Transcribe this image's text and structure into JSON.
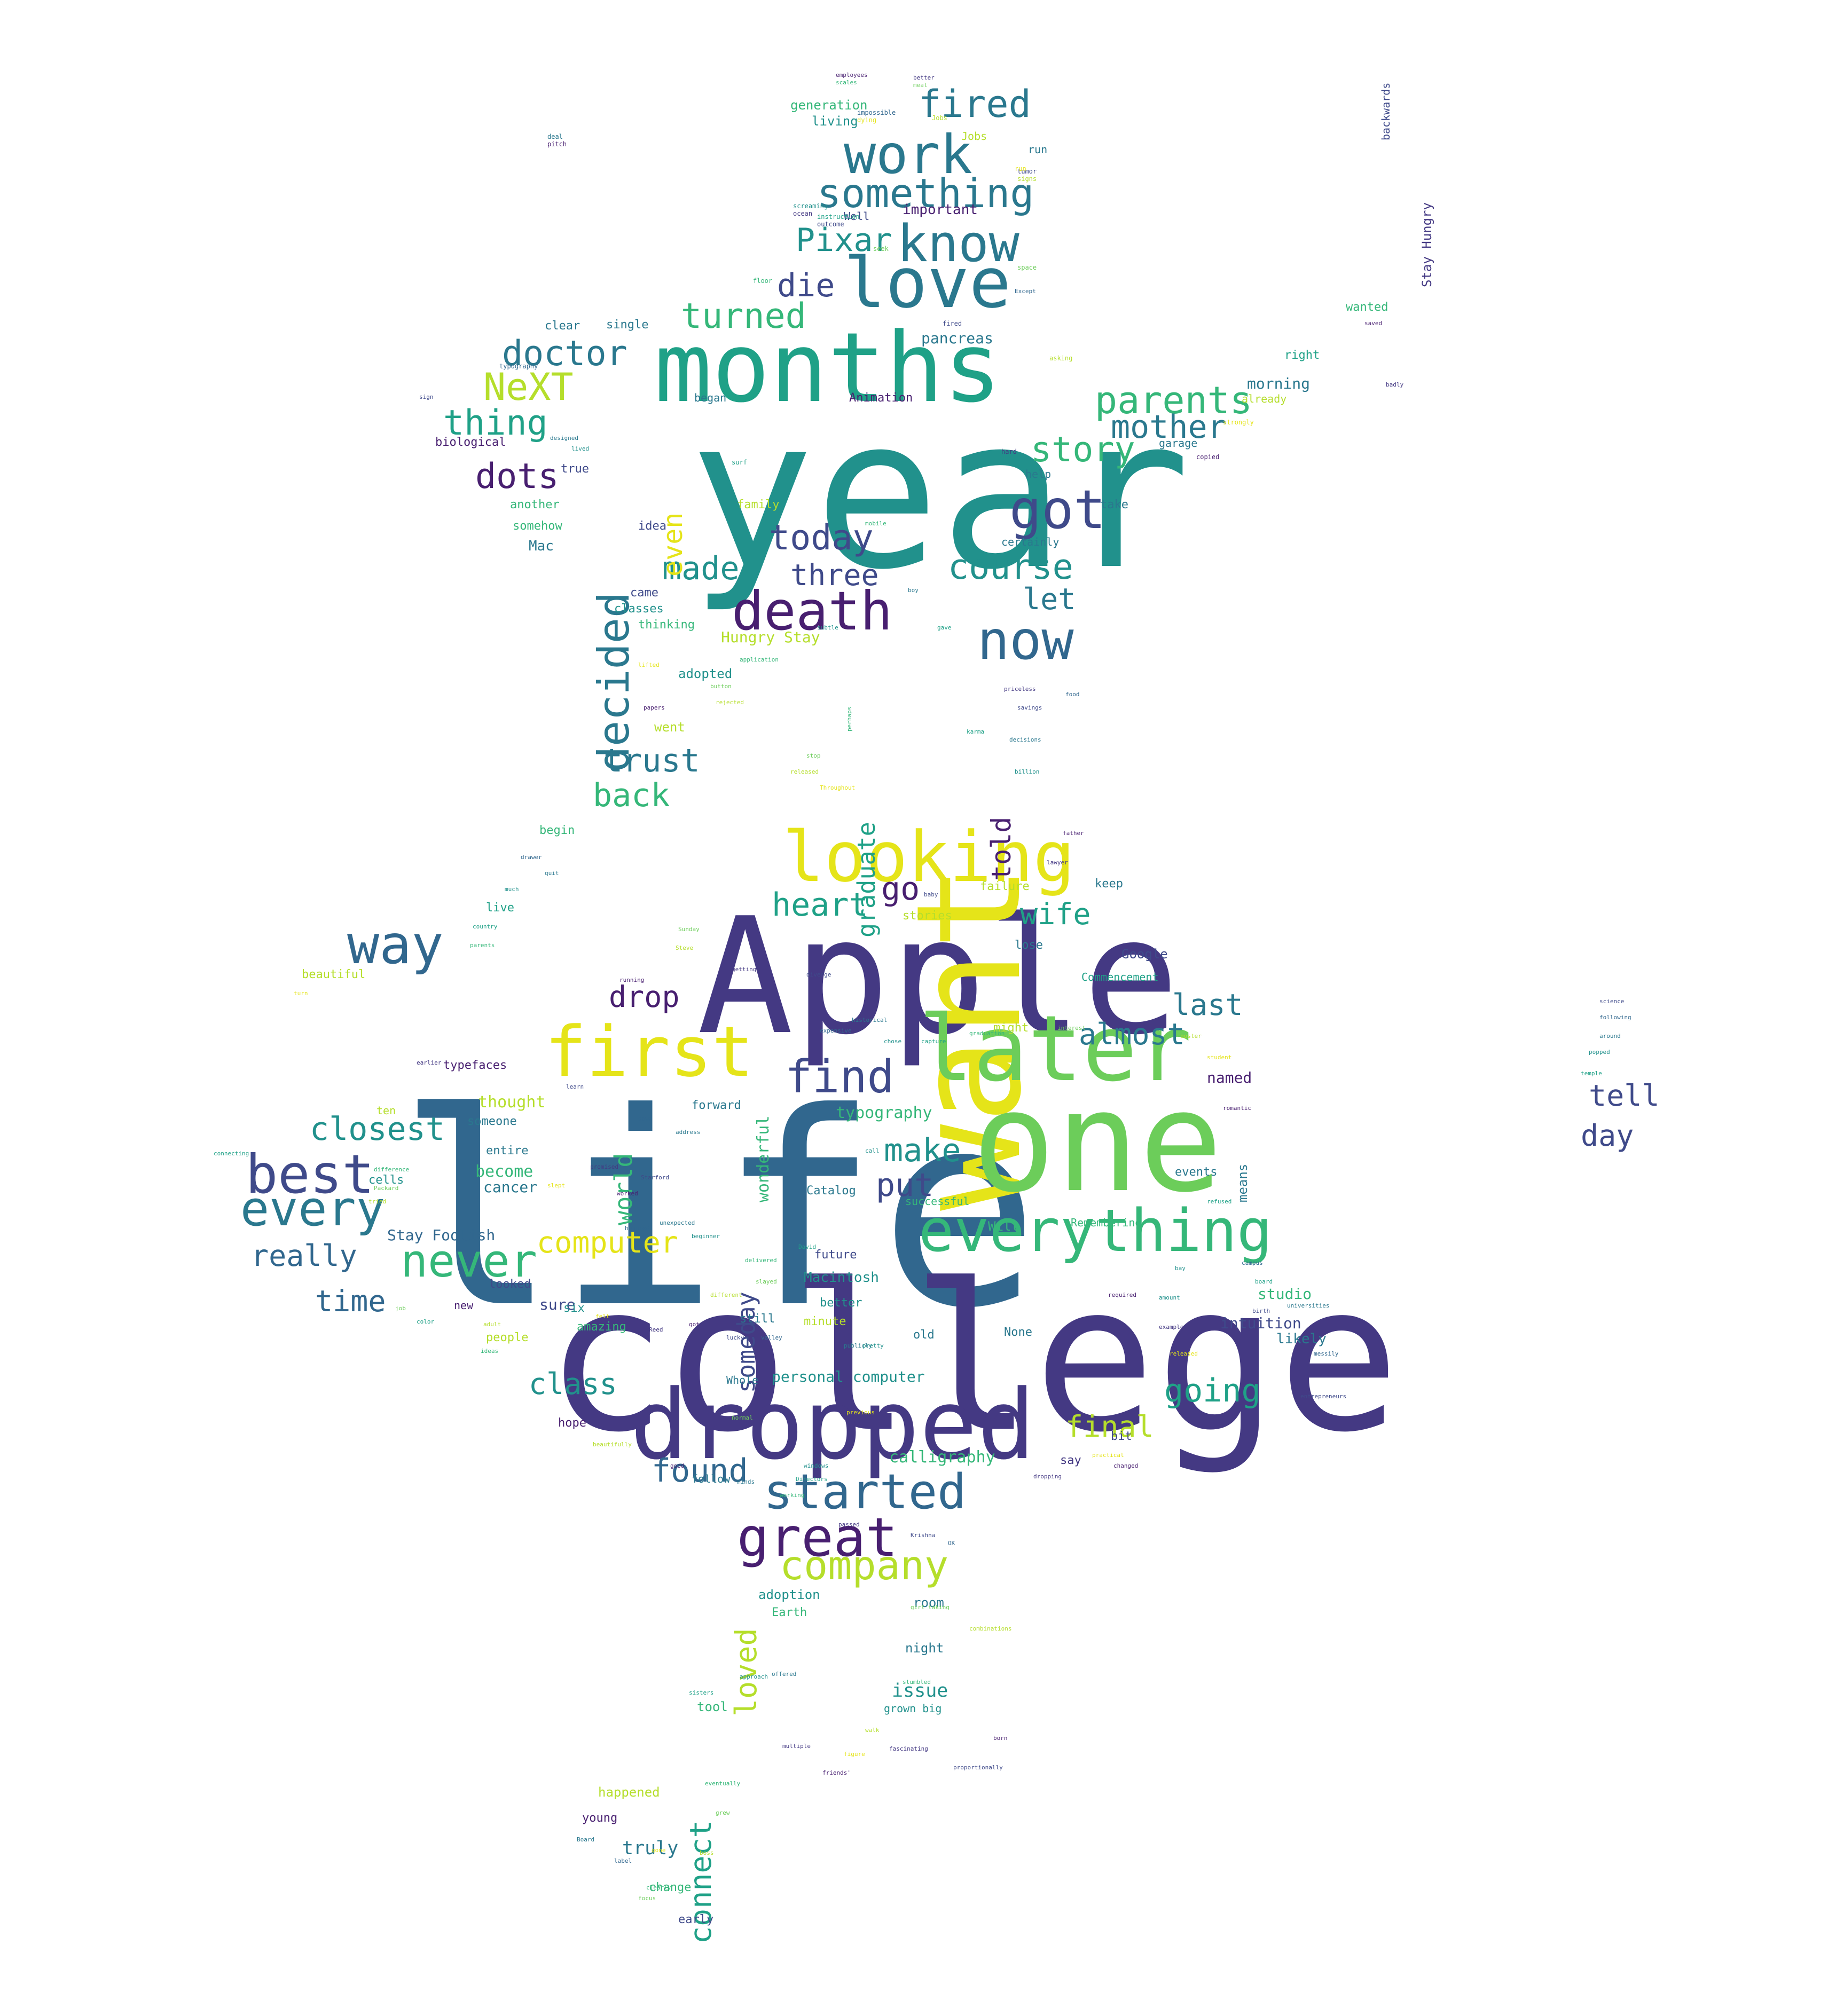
{
  "palette": {
    "dp": "#481f70",
    "pu": "#443983",
    "in": "#3f4a8a",
    "bl": "#31678e",
    "st": "#2a788e",
    "te": "#21918c",
    "tg": "#1fa187",
    "gr": "#35b779",
    "lg": "#6ccd5a",
    "yg": "#b5de2b",
    "ye": "#e5e419"
  },
  "words": [
    {
      "t": "life",
      "c": "bl"
    },
    {
      "t": "college",
      "c": "pu"
    },
    {
      "t": "year",
      "c": "te"
    },
    {
      "t": "Apple",
      "c": "pu"
    },
    {
      "t": "want",
      "c": "ye"
    },
    {
      "t": "one",
      "c": "lg"
    },
    {
      "t": "months",
      "c": "tg"
    },
    {
      "t": "dropped",
      "c": "pu"
    },
    {
      "t": "later",
      "c": "lg"
    },
    {
      "t": "looking",
      "c": "ye"
    },
    {
      "t": "love",
      "c": "st"
    },
    {
      "t": "death",
      "c": "dp"
    },
    {
      "t": "first",
      "c": "ye"
    },
    {
      "t": "everything",
      "c": "gr"
    },
    {
      "t": "great",
      "c": "dp"
    },
    {
      "t": "now",
      "c": "bl"
    },
    {
      "t": "work",
      "c": "st"
    },
    {
      "t": "know",
      "c": "st"
    },
    {
      "t": "started",
      "c": "bl"
    },
    {
      "t": "best",
      "c": "in"
    },
    {
      "t": "every",
      "c": "st"
    },
    {
      "t": "way",
      "c": "bl"
    },
    {
      "t": "got",
      "c": "in"
    },
    {
      "t": "something",
      "c": "st"
    },
    {
      "t": "find",
      "c": "in"
    },
    {
      "t": "company",
      "c": "yg"
    },
    {
      "t": "decided",
      "c": "st"
    },
    {
      "t": "never",
      "c": "gr"
    },
    {
      "t": "fired",
      "c": "st"
    },
    {
      "t": "NeXT",
      "c": "yg"
    },
    {
      "t": "parents",
      "c": "gr"
    },
    {
      "t": "turned",
      "c": "gr"
    },
    {
      "t": "doctor",
      "c": "st"
    },
    {
      "t": "story",
      "c": "gr"
    },
    {
      "t": "mother",
      "c": "st"
    },
    {
      "t": "thing",
      "c": "tg"
    },
    {
      "t": "dots",
      "c": "dp"
    },
    {
      "t": "Pixar",
      "c": "te"
    },
    {
      "t": "die",
      "c": "in"
    },
    {
      "t": "today",
      "c": "in"
    },
    {
      "t": "course",
      "c": "te"
    },
    {
      "t": "made",
      "c": "te"
    },
    {
      "t": "three",
      "c": "in"
    },
    {
      "t": "let",
      "c": "st"
    },
    {
      "t": "trust",
      "c": "st"
    },
    {
      "t": "back",
      "c": "gr"
    },
    {
      "t": "closest",
      "c": "te"
    },
    {
      "t": "heart",
      "c": "tg"
    },
    {
      "t": "wife",
      "c": "tg"
    },
    {
      "t": "go",
      "c": "dp"
    },
    {
      "t": "drop",
      "c": "dp"
    },
    {
      "t": "last",
      "c": "st"
    },
    {
      "t": "almost",
      "c": "st"
    },
    {
      "t": "make",
      "c": "te"
    },
    {
      "t": "put",
      "c": "in"
    },
    {
      "t": "really",
      "c": "bl"
    },
    {
      "t": "computer",
      "c": "ye"
    },
    {
      "t": "time",
      "c": "bl"
    },
    {
      "t": "tell",
      "c": "in"
    },
    {
      "t": "day",
      "c": "in"
    },
    {
      "t": "going",
      "c": "tg"
    },
    {
      "t": "class",
      "c": "te"
    },
    {
      "t": "found",
      "c": "bl"
    },
    {
      "t": "final",
      "c": "yg"
    },
    {
      "t": "calligraphy",
      "c": "gr"
    },
    {
      "t": "connect",
      "c": "tg"
    },
    {
      "t": "loved",
      "c": "yg"
    },
    {
      "t": "even",
      "c": "ye"
    },
    {
      "t": "graduate",
      "c": "tg"
    },
    {
      "t": "told",
      "c": "dp"
    },
    {
      "t": "world",
      "c": "gr"
    },
    {
      "t": "someday",
      "c": "in"
    },
    {
      "t": "issue",
      "c": "te"
    },
    {
      "t": "truly",
      "c": "st"
    },
    {
      "t": "thought",
      "c": "yg"
    },
    {
      "t": "typography",
      "c": "gr"
    },
    {
      "t": "wonderful",
      "c": "gr"
    },
    {
      "t": "Stay Foolish",
      "c": "bl"
    },
    {
      "t": "Hungry Stay",
      "c": "yg"
    },
    {
      "t": "Stay Hungry",
      "c": "pu"
    },
    {
      "t": "personal computer",
      "c": "te"
    },
    {
      "t": "Macintosh",
      "c": "te"
    },
    {
      "t": "intuition",
      "c": "in"
    },
    {
      "t": "morning",
      "c": "st"
    },
    {
      "t": "pancreas",
      "c": "st"
    },
    {
      "t": "important",
      "c": "dp"
    },
    {
      "t": "generation",
      "c": "gr"
    },
    {
      "t": "living",
      "c": "te"
    },
    {
      "t": "Animation",
      "c": "dp"
    },
    {
      "t": "named",
      "c": "dp"
    },
    {
      "t": "become",
      "c": "gr"
    },
    {
      "t": "cancer",
      "c": "st"
    },
    {
      "t": "sure",
      "c": "in"
    },
    {
      "t": "studio",
      "c": "gr"
    },
    {
      "t": "likely",
      "c": "st"
    },
    {
      "t": "adoption",
      "c": "te"
    },
    {
      "t": "Earth",
      "c": "gr"
    },
    {
      "t": "night",
      "c": "st"
    },
    {
      "t": "room",
      "c": "st"
    },
    {
      "t": "tool",
      "c": "gr"
    },
    {
      "t": "grown big",
      "c": "te"
    },
    {
      "t": "happened",
      "c": "yg"
    },
    {
      "t": "young",
      "c": "dp"
    },
    {
      "t": "change",
      "c": "gr"
    },
    {
      "t": "early",
      "c": "in"
    },
    {
      "t": "adopted",
      "c": "te"
    },
    {
      "t": "went",
      "c": "yg"
    },
    {
      "t": "classes",
      "c": "te"
    },
    {
      "t": "thinking",
      "c": "gr"
    },
    {
      "t": "came",
      "c": "in"
    },
    {
      "t": "Mac",
      "c": "st"
    },
    {
      "t": "idea",
      "c": "in"
    },
    {
      "t": "somehow",
      "c": "gr"
    },
    {
      "t": "another",
      "c": "gr"
    },
    {
      "t": "family",
      "c": "yg"
    },
    {
      "t": "true",
      "c": "in"
    },
    {
      "t": "biological",
      "c": "dp"
    },
    {
      "t": "clear",
      "c": "st"
    },
    {
      "t": "single",
      "c": "st"
    },
    {
      "t": "began",
      "c": "st"
    },
    {
      "t": "Google",
      "c": "in"
    },
    {
      "t": "Commencement",
      "c": "tg"
    },
    {
      "t": "keep",
      "c": "st"
    },
    {
      "t": "stories",
      "c": "yg"
    },
    {
      "t": "failure",
      "c": "yg"
    },
    {
      "t": "might",
      "c": "yg"
    },
    {
      "t": "lose",
      "c": "st"
    },
    {
      "t": "events",
      "c": "st"
    },
    {
      "t": "means",
      "c": "st"
    },
    {
      "t": "Remembering",
      "c": "gr"
    },
    {
      "t": "beautiful",
      "c": "yg"
    },
    {
      "t": "live",
      "c": "tg"
    },
    {
      "t": "begin",
      "c": "gr"
    },
    {
      "t": "typefaces",
      "c": "dp"
    },
    {
      "t": "someone",
      "c": "st"
    },
    {
      "t": "entire",
      "c": "st"
    },
    {
      "t": "cells",
      "c": "te"
    },
    {
      "t": "ten",
      "c": "yg"
    },
    {
      "t": "looked",
      "c": "in"
    },
    {
      "t": "people",
      "c": "yg"
    },
    {
      "t": "hope",
      "c": "dp"
    },
    {
      "t": "new",
      "c": "dp"
    },
    {
      "t": "six",
      "c": "te"
    },
    {
      "t": "amazing",
      "c": "gr"
    },
    {
      "t": "still",
      "c": "st"
    },
    {
      "t": "minute",
      "c": "yg"
    },
    {
      "t": "better",
      "c": "te"
    },
    {
      "t": "future",
      "c": "in"
    },
    {
      "t": "Catalog",
      "c": "st"
    },
    {
      "t": "successful",
      "c": "gr"
    },
    {
      "t": "Will",
      "c": "gr"
    },
    {
      "t": "old",
      "c": "st"
    },
    {
      "t": "None",
      "c": "st"
    },
    {
      "t": "Whole",
      "c": "st"
    },
    {
      "t": "say",
      "c": "pu"
    },
    {
      "t": "bit",
      "c": "in"
    },
    {
      "t": "forward",
      "c": "st"
    },
    {
      "t": "follow",
      "c": "st"
    },
    {
      "t": "Jobs",
      "c": "yg"
    },
    {
      "t": "run",
      "c": "st"
    },
    {
      "t": "Well",
      "c": "in"
    },
    {
      "t": "help",
      "c": "st"
    },
    {
      "t": "take",
      "c": "st"
    },
    {
      "t": "garage",
      "c": "st"
    },
    {
      "t": "already",
      "c": "yg"
    },
    {
      "t": "right",
      "c": "tg"
    },
    {
      "t": "wanted",
      "c": "gr"
    },
    {
      "t": "certainly",
      "c": "st"
    },
    {
      "t": "backwards",
      "c": "in"
    }
  ],
  "small_words": [
    "employees",
    "better",
    "tumor",
    "impossible",
    "deal",
    "screaming",
    "instruction",
    "floor",
    "seek",
    "Jobs",
    "run",
    "saved",
    "badly",
    "sign",
    "typography",
    "designed",
    "lived",
    "surf",
    "mobile",
    "space",
    "asking",
    "strongly",
    "copied",
    "hard",
    "fired",
    "Except",
    "boy",
    "subtle",
    "gave",
    "application",
    "button",
    "rejected",
    "lifted",
    "papers",
    "priceless",
    "savings",
    "food",
    "decisions",
    "billion",
    "karma",
    "perhaps",
    "stop",
    "released",
    "Throughout",
    "father",
    "lawyer",
    "baby",
    "drawer",
    "quit",
    "much",
    "country",
    "parents",
    "Sunday",
    "Steve",
    "turn",
    "running",
    "getting",
    "diverge",
    "expensive",
    "historical",
    "chose",
    "capture",
    "graduation",
    "interest",
    "poster",
    "student",
    "romantic",
    "earlier",
    "learn",
    "dawn",
    "address",
    "call",
    "connecting",
    "difference",
    "Packard",
    "tried",
    "slept",
    "worked",
    "promised",
    "Starford",
    "honored",
    "unexpected",
    "beginner",
    "David",
    "delivered",
    "slayed",
    "different",
    "felt",
    "got",
    "Reed",
    "lucky",
    "valley",
    "publicly",
    "pretty",
    "color",
    "ideas",
    "job",
    "adult",
    "previous",
    "good",
    "passed",
    "Krishna",
    "OK",
    "minds",
    "windows",
    "Directors",
    "working",
    "normal",
    "beautifully",
    "practical",
    "changed",
    "dropping",
    "entrepreneurs",
    "messily",
    "offered",
    "approach",
    "sisters",
    "clearly",
    "focus",
    "walk",
    "figure",
    "friends'",
    "multiple",
    "science",
    "following",
    "around",
    "popped",
    "temple",
    "stumbled",
    "girl taking",
    "combinations",
    "released",
    "required",
    "example",
    "birth",
    "campus",
    "universities",
    "amount",
    "refused",
    "eventually",
    "grew",
    "boss",
    "gone",
    "born",
    "fascinating",
    "proportionally",
    "label",
    "Board",
    "bay",
    "board",
    "scales",
    "meal",
    "signs",
    "dying",
    "pitch",
    "ocean",
    "outcome"
  ]
}
